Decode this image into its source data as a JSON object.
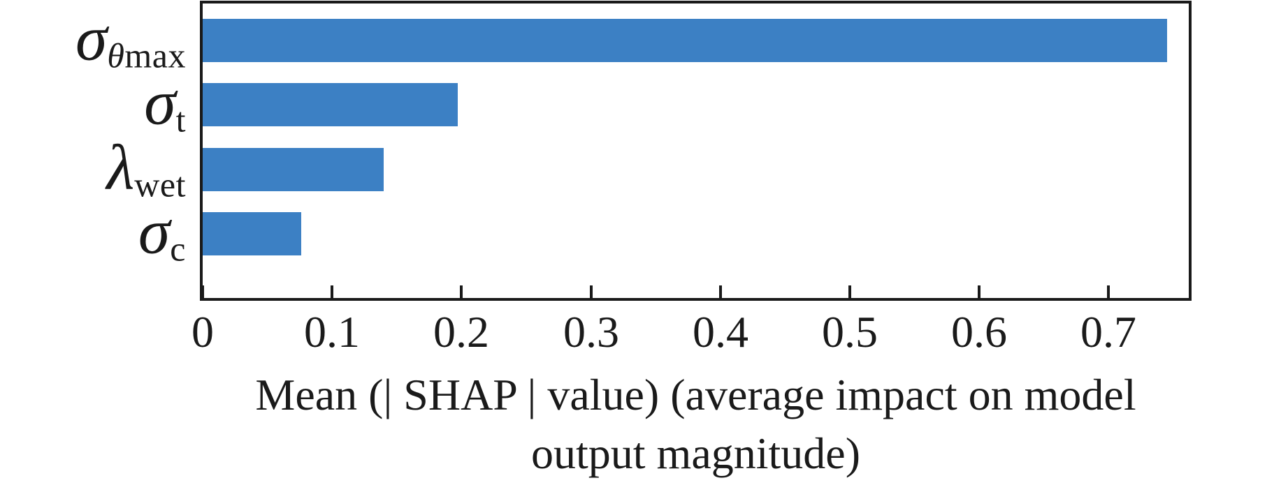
{
  "chart_data": {
    "type": "bar",
    "orientation": "horizontal",
    "title": "",
    "categories": [
      "σ_θmax",
      "σ_t",
      "λ_wet",
      "σ_c"
    ],
    "values": [
      0.745,
      0.197,
      0.14,
      0.076
    ],
    "series": [
      {
        "name": "Mean |SHAP| value",
        "values": [
          0.745,
          0.197,
          0.14,
          0.076
        ]
      }
    ],
    "xlabel": "Mean (| SHAP | value) (average impact on model output magnitude)",
    "xlabel_lines": [
      "Mean (| SHAP | value) (average impact on model",
      "output magnitude)"
    ],
    "ylabel": "",
    "xticks": [
      0,
      0.1,
      0.2,
      0.3,
      0.4,
      0.5,
      0.6,
      0.7
    ],
    "xtick_labels": [
      "0",
      "0.1",
      "0.2",
      "0.3",
      "0.4",
      "0.5",
      "0.6",
      "0.7"
    ],
    "xlim": [
      0,
      0.762
    ],
    "grid": false,
    "legend": null,
    "bar_color": "#3c80c4",
    "axis_color": "#1a1a1a",
    "background_color": "#ffffff",
    "features_rich": [
      {
        "main": "σ",
        "sub": [
          {
            "text": "θ",
            "italic": true
          },
          {
            "text": "max",
            "italic": false
          }
        ]
      },
      {
        "main": "σ",
        "sub": [
          {
            "text": "t",
            "italic": false
          }
        ]
      },
      {
        "main": "λ",
        "sub": [
          {
            "text": "wet",
            "italic": false
          }
        ]
      },
      {
        "main": "σ",
        "sub": [
          {
            "text": "c",
            "italic": false
          }
        ]
      }
    ]
  }
}
